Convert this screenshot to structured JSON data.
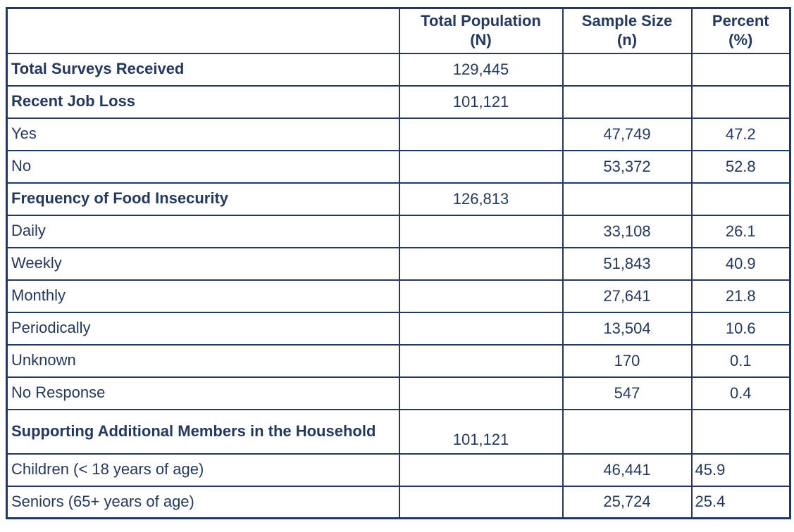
{
  "colors": {
    "ink": "#24395f",
    "border": "#24395f",
    "background": "#ffffff"
  },
  "table": {
    "headers": [
      {
        "line1": "",
        "line2": ""
      },
      {
        "line1": "Total Population",
        "line2": "(N)"
      },
      {
        "line1": "Sample Size",
        "line2": "(n)"
      },
      {
        "line1": "Percent",
        "line2": "(%)"
      }
    ],
    "rows": [
      {
        "label": "Total Surveys Received",
        "bold": true,
        "population": "129,445",
        "sample": "",
        "percent": ""
      },
      {
        "label": "Recent Job Loss",
        "bold": true,
        "population": "101,121",
        "sample": "",
        "percent": ""
      },
      {
        "label": "Yes",
        "bold": false,
        "population": "",
        "sample": "47,749",
        "percent": "47.2"
      },
      {
        "label": "No",
        "bold": false,
        "population": "",
        "sample": "53,372",
        "percent": "52.8"
      },
      {
        "label": "Frequency of Food Insecurity",
        "bold": true,
        "population": "126,813",
        "sample": "",
        "percent": ""
      },
      {
        "label": "Daily",
        "bold": false,
        "population": "",
        "sample": "33,108",
        "percent": "26.1"
      },
      {
        "label": "Weekly",
        "bold": false,
        "population": "",
        "sample": "51,843",
        "percent": "40.9"
      },
      {
        "label": "Monthly",
        "bold": false,
        "population": "",
        "sample": "27,641",
        "percent": "21.8"
      },
      {
        "label": "Periodically",
        "bold": false,
        "population": "",
        "sample": "13,504",
        "percent": "10.6"
      },
      {
        "label": "Unknown",
        "bold": false,
        "population": "",
        "sample": "170",
        "percent": "0.1"
      },
      {
        "label": "No Response",
        "bold": false,
        "population": "",
        "sample": "547",
        "percent": "0.4"
      },
      {
        "label": "Supporting Additional Members in the Household",
        "bold": true,
        "population": "101,121",
        "sample": "",
        "percent": "",
        "tall": true,
        "population_valign": "bottom"
      },
      {
        "label": "Children (< 18 years of age)",
        "bold": false,
        "population": "",
        "sample": "46,441",
        "percent": "45.9",
        "percent_align": "left"
      },
      {
        "label": "Seniors (65+ years of age)",
        "bold": false,
        "population": "",
        "sample": "25,724",
        "percent": "25.4",
        "percent_align": "left"
      }
    ]
  },
  "chart_data": {
    "type": "table",
    "columns": [
      "",
      "Total Population (N)",
      "Sample Size (n)",
      "Percent (%)"
    ],
    "rows": [
      [
        "Total Surveys Received",
        "129,445",
        "",
        ""
      ],
      [
        "Recent Job Loss",
        "101,121",
        "",
        ""
      ],
      [
        "Yes",
        "",
        "47,749",
        "47.2"
      ],
      [
        "No",
        "",
        "53,372",
        "52.8"
      ],
      [
        "Frequency of Food Insecurity",
        "126,813",
        "",
        ""
      ],
      [
        "Daily",
        "",
        "33,108",
        "26.1"
      ],
      [
        "Weekly",
        "",
        "51,843",
        "40.9"
      ],
      [
        "Monthly",
        "",
        "27,641",
        "21.8"
      ],
      [
        "Periodically",
        "",
        "13,504",
        "10.6"
      ],
      [
        "Unknown",
        "",
        "170",
        "0.1"
      ],
      [
        "No Response",
        "",
        "547",
        "0.4"
      ],
      [
        "Supporting Additional Members in the Household",
        "101,121",
        "",
        ""
      ],
      [
        "Children (< 18 years of age)",
        "",
        "46,441",
        "45.9"
      ],
      [
        "Seniors (65+ years of age)",
        "",
        "25,724",
        "25.4"
      ]
    ],
    "layout": {
      "grid": true,
      "header_row_bold": true,
      "section_rows_bold": [
        0,
        1,
        4,
        11
      ]
    }
  }
}
